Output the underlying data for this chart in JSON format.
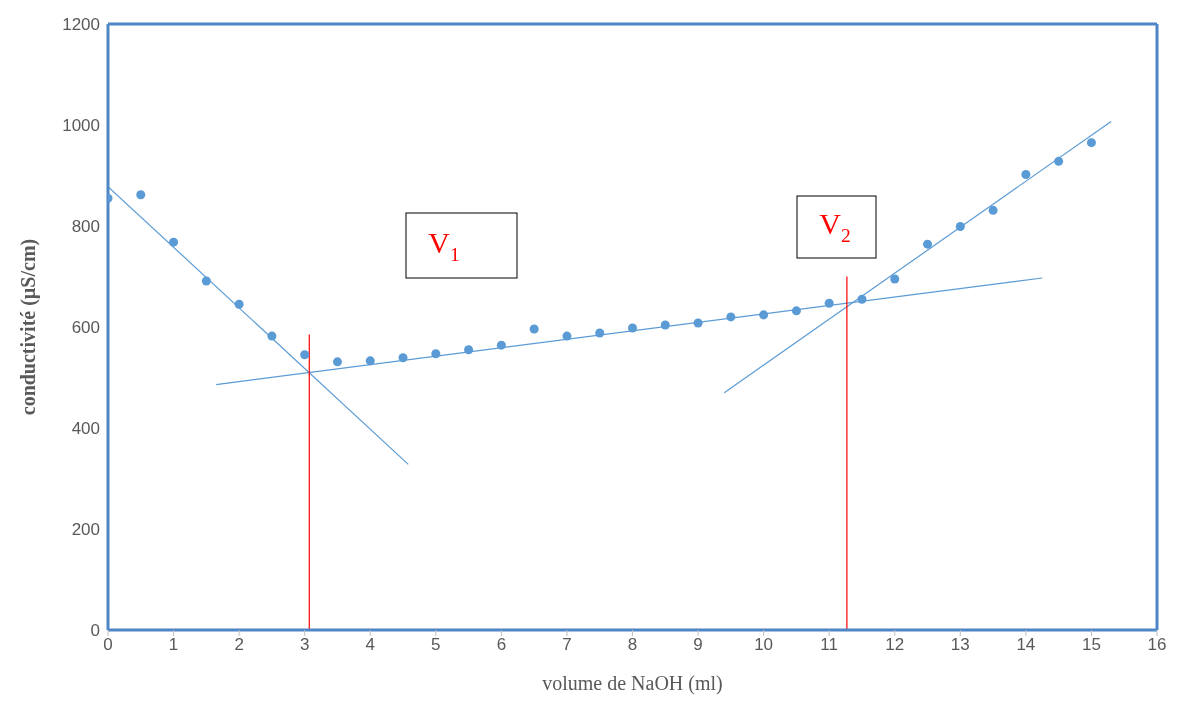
{
  "chart_data": {
    "type": "scatter",
    "xlabel": "volume de NaOH (ml)",
    "ylabel": "conductivité (µS/cm)",
    "xlim": [
      0,
      16
    ],
    "xticks": [
      0,
      1,
      2,
      3,
      4,
      5,
      6,
      7,
      8,
      9,
      10,
      11,
      12,
      13,
      14,
      15,
      16
    ],
    "ylim": [
      0,
      1200
    ],
    "yticks": [
      0,
      200,
      400,
      600,
      800,
      1000,
      1200
    ],
    "marker": "circle",
    "series": [
      {
        "color": "#5b9bd5",
        "x": [
          0,
          0.5,
          1,
          1.5,
          2,
          2.5,
          3,
          3.5,
          4,
          4.5,
          5,
          5.5,
          6,
          6.5,
          7,
          7.5,
          8,
          8.5,
          9,
          9.5,
          10,
          10.5,
          11,
          11.5,
          12,
          12.5,
          13,
          13.5,
          14,
          14.5,
          15
        ],
        "values": [
          855,
          862,
          768,
          691,
          645,
          582,
          545,
          531,
          533,
          539,
          547,
          555,
          564,
          596,
          582,
          588,
          598,
          604,
          608,
          620,
          624,
          632,
          647,
          655,
          695,
          764,
          799,
          831,
          902,
          928,
          965
        ]
      },
      {
        "type": "line",
        "color": "#5b9bd5",
        "marker": "none",
        "x": [
          0,
          4.58
        ],
        "values": [
          878,
          328
        ]
      },
      {
        "type": "line",
        "color": "#5b9bd5",
        "marker": "none",
        "x": [
          1.65,
          14.25
        ],
        "values": [
          486,
          697
        ]
      },
      {
        "type": "line",
        "color": "#5b9bd5",
        "marker": "none",
        "x": [
          9.4,
          15.3
        ],
        "values": [
          470,
          1007
        ]
      },
      {
        "type": "line",
        "color": "#ff0000",
        "marker": "none",
        "x": [
          3.07,
          3.07
        ],
        "values": [
          0,
          585
        ]
      },
      {
        "type": "line",
        "color": "#ff0000",
        "marker": "none",
        "x": [
          11.27,
          11.27
        ],
        "values": [
          0,
          700
        ]
      }
    ],
    "annotations": [
      "V$_{1}$",
      "V$_{2}$"
    ]
  }
}
